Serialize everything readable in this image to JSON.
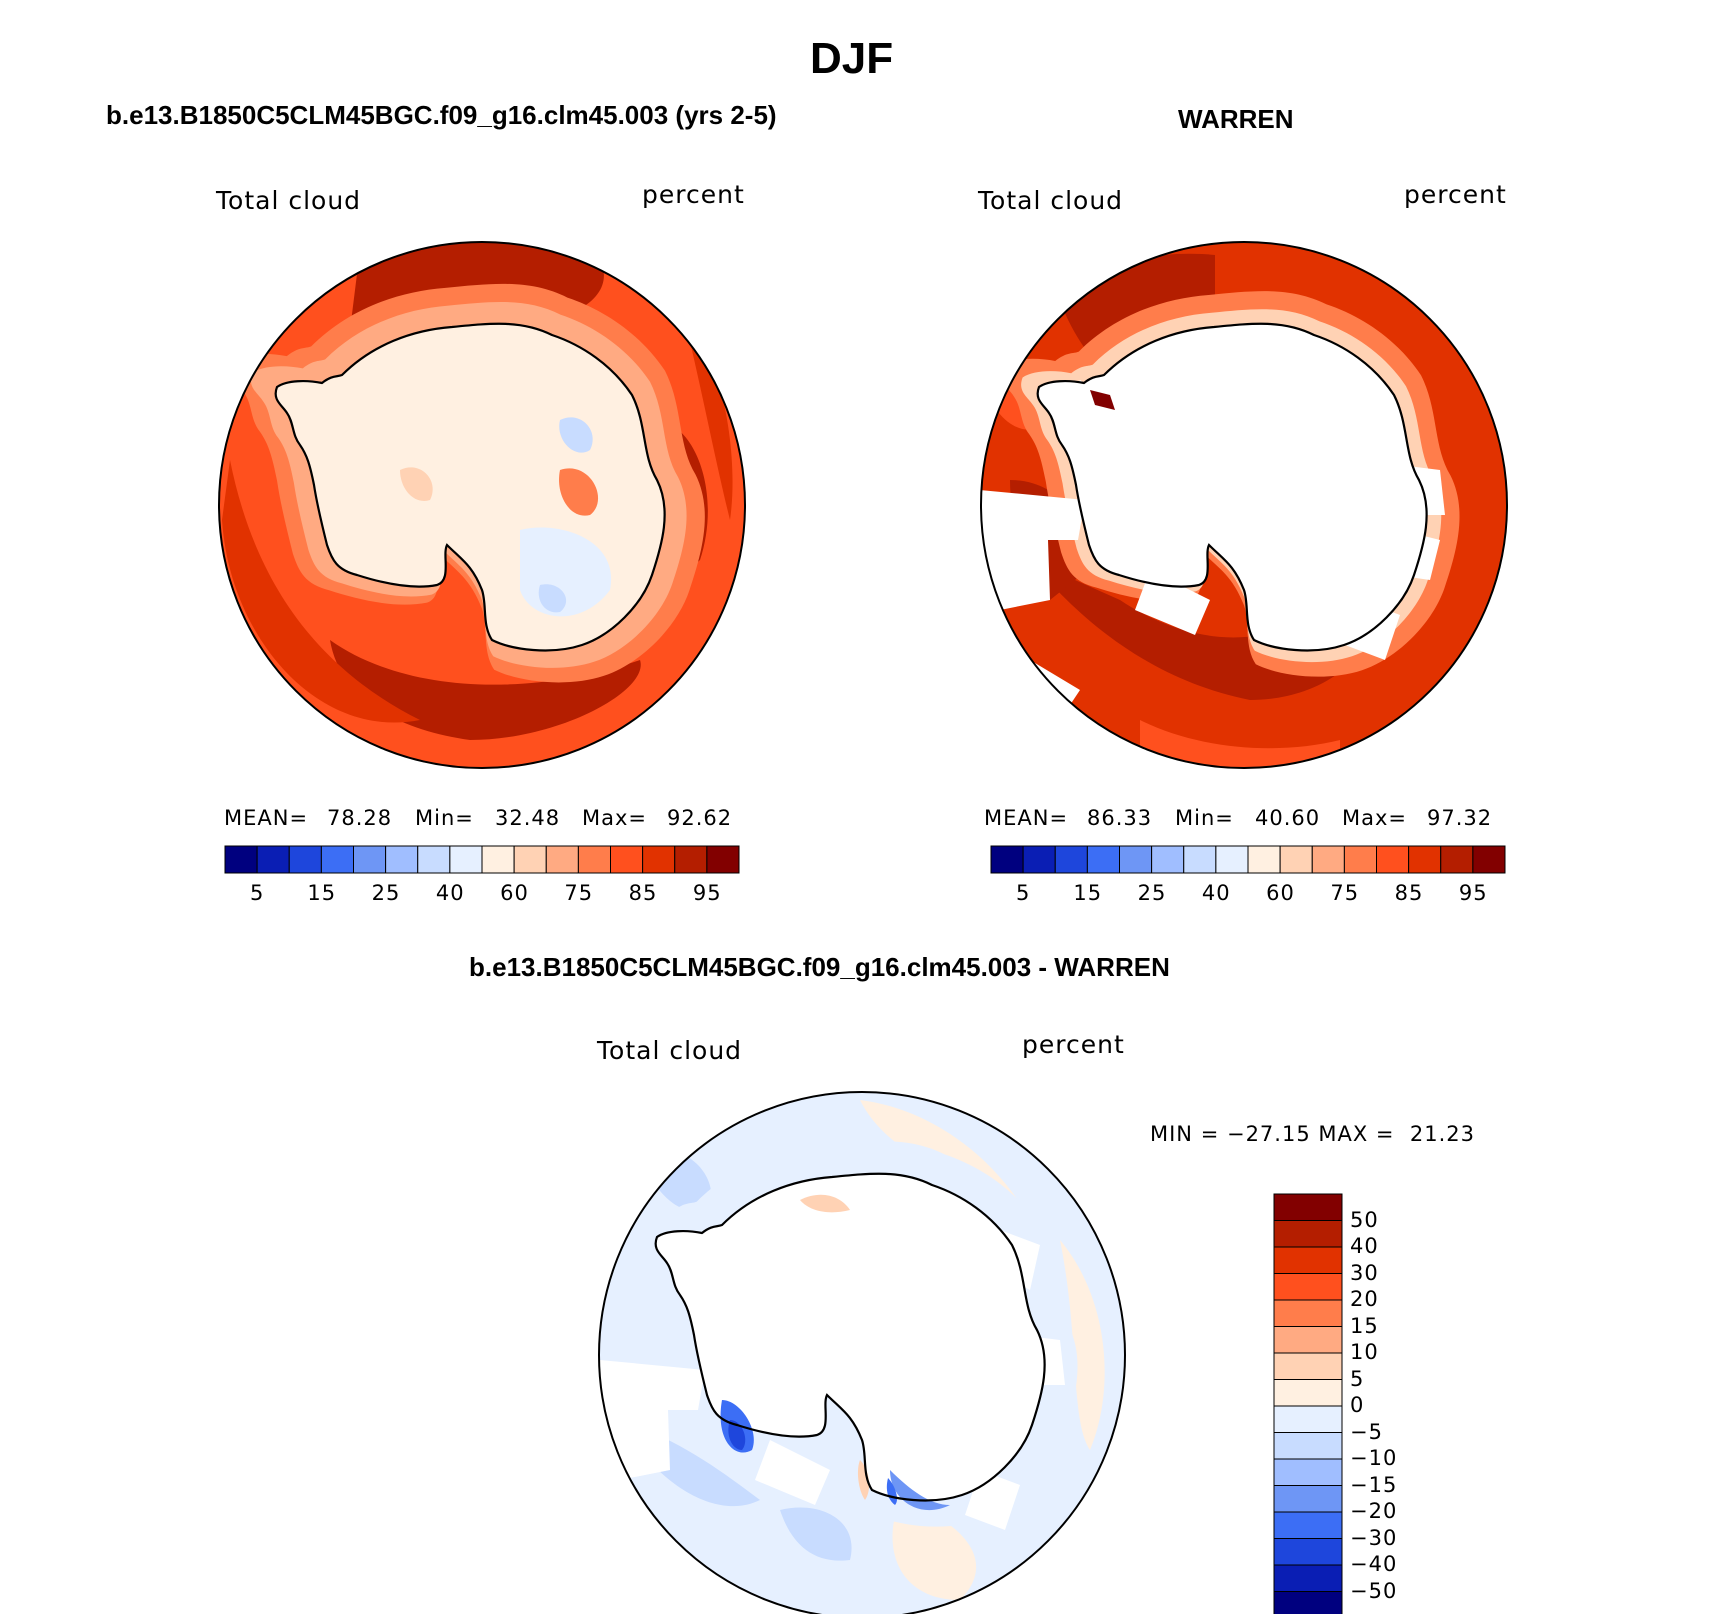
{
  "figure": {
    "title": "DJF"
  },
  "panels": [
    {
      "heading": "b.e13.B1850C5CLM45BGC.f09_g16.clm45.003 (yrs 2-5)",
      "left_label": "Total cloud",
      "right_label": "percent",
      "stats": {
        "mean_label": "MEAN=",
        "mean": "78.28",
        "min_label": "Min=",
        "min": "32.48",
        "max_label": "Max=",
        "max": "92.62"
      },
      "colorbar_ticks": [
        "5",
        "15",
        "25",
        "40",
        "60",
        "75",
        "85",
        "95"
      ]
    },
    {
      "heading": "WARREN",
      "left_label": "Total cloud",
      "right_label": "percent",
      "stats": {
        "mean_label": "MEAN=",
        "mean": "86.33",
        "min_label": "Min=",
        "min": "40.60",
        "max_label": "Max=",
        "max": "97.32"
      },
      "colorbar_ticks": [
        "5",
        "15",
        "25",
        "40",
        "60",
        "75",
        "85",
        "95"
      ]
    },
    {
      "heading": "b.e13.B1850C5CLM45BGC.f09_g16.clm45.003 - WARREN",
      "left_label": "Total cloud",
      "right_label": "percent",
      "stats_text": "MIN = −27.15 MAX =  21.23",
      "colorbar_labels": [
        "50",
        "40",
        "30",
        "20",
        "15",
        "10",
        "5",
        "0",
        "−5",
        "−10",
        "−15",
        "−20",
        "−30",
        "−40",
        "−50"
      ]
    }
  ],
  "colors": {
    "abs_scale": [
      "#00007f",
      "#0a1eb4",
      "#1e46dc",
      "#3c6ef5",
      "#6e96f5",
      "#a0beff",
      "#c8dcff",
      "#e6f0ff",
      "#fff0e1",
      "#ffd2b4",
      "#ffaa82",
      "#ff7d4b",
      "#ff501e",
      "#e13200",
      "#b41e00",
      "#820000"
    ],
    "diff_scale": [
      "#820000",
      "#b41e00",
      "#e13200",
      "#ff501e",
      "#ff7d4b",
      "#ffaa82",
      "#ffd2b4",
      "#fff0e1",
      "#e6f0ff",
      "#c8dcff",
      "#a0beff",
      "#6e96f5",
      "#3c6ef5",
      "#1e46dc",
      "#0a1eb4",
      "#00007f"
    ]
  }
}
